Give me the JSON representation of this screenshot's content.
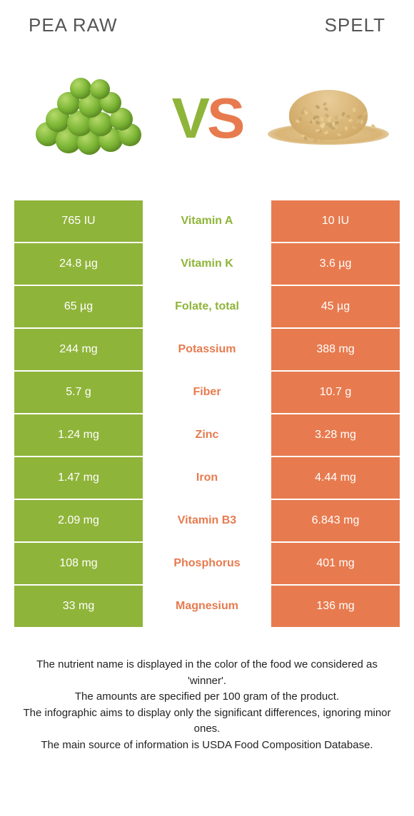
{
  "header": {
    "left_title": "Pea raw",
    "right_title": "Spelt"
  },
  "vs": {
    "left": "V",
    "right": "S"
  },
  "colors": {
    "left_bg": "#8fb43a",
    "right_bg": "#e77b4f",
    "left_text": "#8fb43a",
    "right_text": "#e77b4f"
  },
  "rows": [
    {
      "label": "Vitamin A",
      "left": "765 IU",
      "right": "10 IU",
      "winner": "left"
    },
    {
      "label": "Vitamin K",
      "left": "24.8 µg",
      "right": "3.6 µg",
      "winner": "left"
    },
    {
      "label": "Folate, total",
      "left": "65 µg",
      "right": "45 µg",
      "winner": "left"
    },
    {
      "label": "Potassium",
      "left": "244 mg",
      "right": "388 mg",
      "winner": "right"
    },
    {
      "label": "Fiber",
      "left": "5.7 g",
      "right": "10.7 g",
      "winner": "right"
    },
    {
      "label": "Zinc",
      "left": "1.24 mg",
      "right": "3.28 mg",
      "winner": "right"
    },
    {
      "label": "Iron",
      "left": "1.47 mg",
      "right": "4.44 mg",
      "winner": "right"
    },
    {
      "label": "Vitamin B3",
      "left": "2.09 mg",
      "right": "6.843 mg",
      "winner": "right"
    },
    {
      "label": "Phosphorus",
      "left": "108 mg",
      "right": "401 mg",
      "winner": "right"
    },
    {
      "label": "Magnesium",
      "left": "33 mg",
      "right": "136 mg",
      "winner": "right"
    }
  ],
  "footer": {
    "line1": "The nutrient name is displayed in the color of the food we considered as 'winner'.",
    "line2": "The amounts are specified per 100 gram of the product.",
    "line3": "The infographic aims to display only the significant differences, ignoring minor ones.",
    "line4": "The main source of information is USDA Food Composition Database."
  }
}
